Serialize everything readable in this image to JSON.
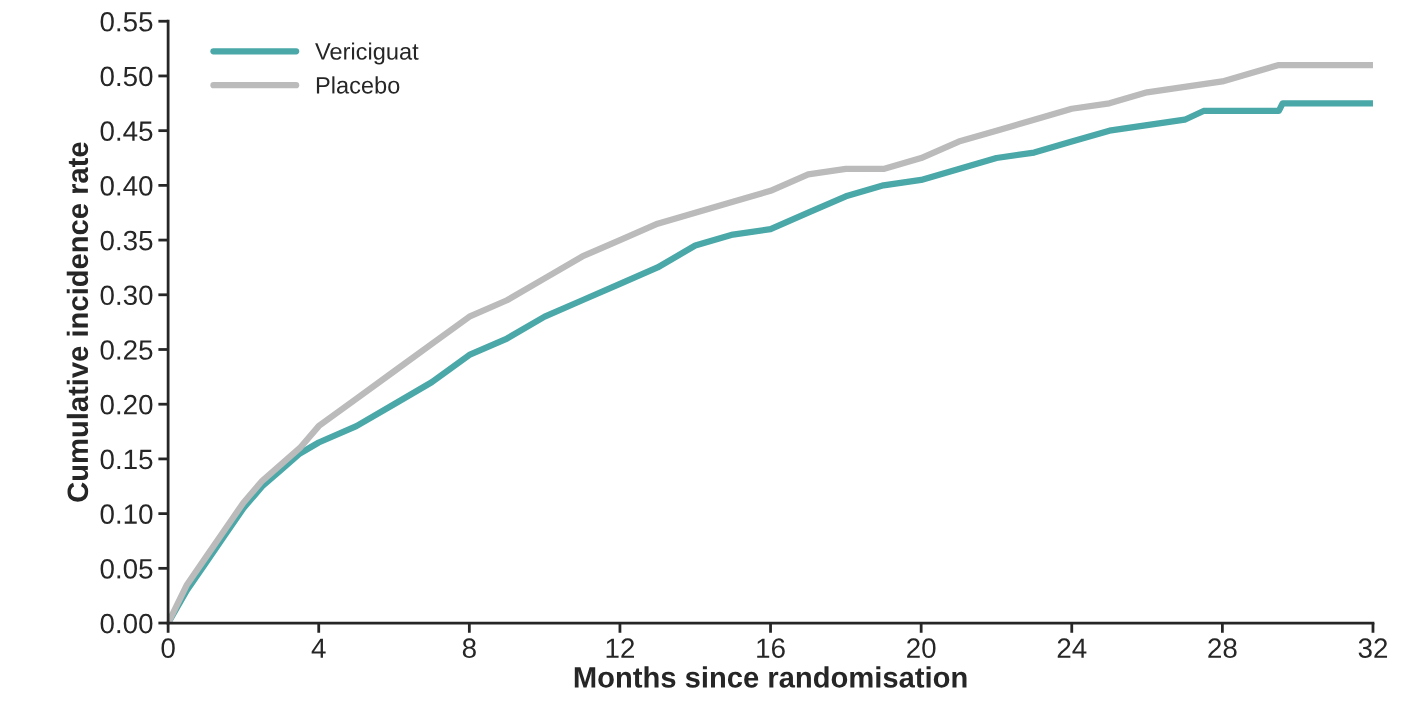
{
  "chart_data": {
    "type": "line",
    "xlabel": "Months since randomisation",
    "ylabel": "Cumulative incidence rate",
    "xlim": [
      0,
      32
    ],
    "xticks": [
      0,
      4,
      8,
      12,
      16,
      20,
      24,
      28,
      32
    ],
    "ylim": [
      0,
      0.55
    ],
    "yticks": [
      {
        "value": 0,
        "label": "0.00"
      },
      {
        "value": 0.05,
        "label": "0.05"
      },
      {
        "value": 0.1,
        "label": "0.10"
      },
      {
        "value": 0.15,
        "label": "0.15"
      },
      {
        "value": 0.2,
        "label": "0.20"
      },
      {
        "value": 0.25,
        "label": "0.25"
      },
      {
        "value": 0.3,
        "label": "0.30"
      },
      {
        "value": 0.35,
        "label": "0.35"
      },
      {
        "value": 0.4,
        "label": "0.40"
      },
      {
        "value": 0.45,
        "label": "0.45"
      },
      {
        "value": 0.5,
        "label": "0.50"
      },
      {
        "value": 0.55,
        "label": "0.55"
      }
    ],
    "grid": false,
    "legend": "top left",
    "line_style": "solid",
    "marker": "none",
    "series": [
      {
        "name": "Vericiguat",
        "color": "#4aa8a8",
        "x": [
          0,
          0.5,
          1,
          1.5,
          2,
          2.5,
          3,
          3.5,
          4,
          5,
          6,
          7,
          8,
          9,
          10,
          11,
          12,
          13,
          14,
          15,
          16,
          17,
          18,
          19,
          20,
          21,
          22,
          23,
          24,
          25,
          26,
          27,
          27.5,
          29.5,
          29.6,
          32
        ],
        "values": [
          0,
          0.03,
          0.055,
          0.08,
          0.105,
          0.125,
          0.14,
          0.155,
          0.165,
          0.18,
          0.2,
          0.22,
          0.245,
          0.26,
          0.28,
          0.295,
          0.31,
          0.325,
          0.345,
          0.355,
          0.36,
          0.375,
          0.39,
          0.4,
          0.405,
          0.415,
          0.425,
          0.43,
          0.44,
          0.45,
          0.455,
          0.46,
          0.468,
          0.468,
          0.475,
          0.475
        ]
      },
      {
        "name": "Placebo",
        "color": "#bbbbbb",
        "x": [
          0,
          0.5,
          1,
          1.5,
          2,
          2.5,
          3,
          3.5,
          4,
          5,
          6,
          7,
          8,
          9,
          10,
          11,
          12,
          13,
          14,
          15,
          16,
          17,
          18,
          19,
          20,
          21,
          22,
          23,
          24,
          25,
          26,
          27,
          28,
          29,
          29.5,
          32
        ],
        "values": [
          0,
          0.035,
          0.06,
          0.085,
          0.11,
          0.13,
          0.145,
          0.16,
          0.18,
          0.205,
          0.23,
          0.255,
          0.28,
          0.295,
          0.315,
          0.335,
          0.35,
          0.365,
          0.375,
          0.385,
          0.395,
          0.41,
          0.415,
          0.415,
          0.425,
          0.44,
          0.45,
          0.46,
          0.47,
          0.475,
          0.485,
          0.49,
          0.495,
          0.505,
          0.51,
          0.51
        ]
      }
    ]
  }
}
